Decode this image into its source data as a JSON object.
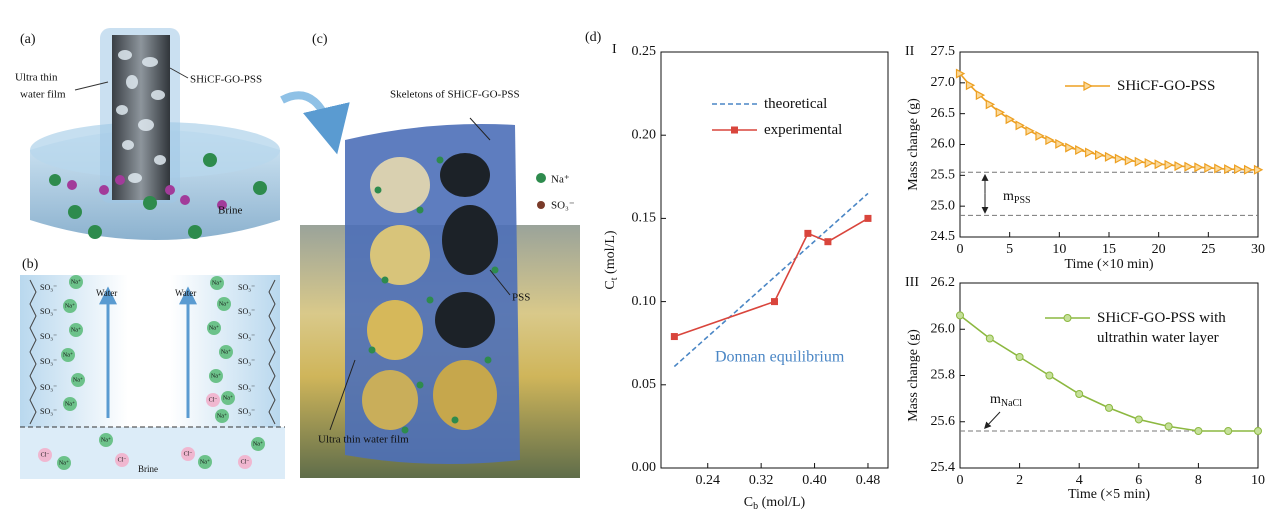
{
  "panel_labels": {
    "a": "(a)",
    "b": "(b)",
    "c": "(c)",
    "d": "(d)"
  },
  "panel_a": {
    "film_label": [
      "Ultra thin",
      "water film"
    ],
    "material_label": "SHiCF-GO-PSS",
    "brine_label": "Brine"
  },
  "panel_b": {
    "water_label": "Water",
    "brine_label": "Brine",
    "ions": {
      "sulfonate": "SO₃⁻",
      "sodium": "Na⁺",
      "chloride": "Cl⁻"
    }
  },
  "panel_c": {
    "skeleton_label": "Skeletons of SHiCF-GO-PSS",
    "legend": {
      "sodium": "Na⁺",
      "sulfonate": "SO₃⁻"
    },
    "pss_label": "PSS",
    "film_label": "Ultra thin water film"
  },
  "chart_data": [
    {
      "type": "line",
      "panel": "I",
      "x_label": [
        "C",
        "b",
        " (mol/L)"
      ],
      "y_label": [
        "C",
        "t",
        " (mol/L)"
      ],
      "xlim": [
        0.17,
        0.51
      ],
      "xticks": [
        0.24,
        0.32,
        {
          "value": 0.4,
          "label": "0.40"
        },
        0.48
      ],
      "ylim": [
        0,
        0.25
      ],
      "yticks": [
        {
          "value": 0,
          "label": "0.00"
        },
        0.05,
        {
          "value": 0.1,
          "label": "0.10"
        },
        0.15,
        {
          "value": 0.2,
          "label": "0.20"
        },
        0.25
      ],
      "series": [
        {
          "name": "theoretical",
          "color": "#4a86c5",
          "dash": true,
          "marker": "none",
          "x": [
            0.19,
            0.48
          ],
          "values": [
            0.061,
            0.165
          ]
        },
        {
          "name": "experimental",
          "color": "#d9453c",
          "dash": false,
          "marker": "square",
          "x": [
            0.19,
            0.34,
            0.39,
            0.42,
            0.48
          ],
          "values": [
            0.079,
            0.1,
            0.141,
            0.136,
            0.15
          ]
        }
      ],
      "annotation": "Donnan equilibrium"
    },
    {
      "type": "line",
      "panel": "II",
      "x_label": [
        "Time (×10 min)"
      ],
      "y_label": [
        "Mass change (g)"
      ],
      "x": [
        0,
        1,
        2,
        3,
        4,
        5,
        6,
        7,
        8,
        9,
        10,
        11,
        12,
        13,
        14,
        15,
        16,
        17,
        18,
        19,
        20,
        21,
        22,
        23,
        24,
        25,
        26,
        27,
        28,
        29,
        30
      ],
      "xlim": [
        0,
        30
      ],
      "xticks": [
        0,
        5,
        10,
        15,
        20,
        25,
        30
      ],
      "ylim": [
        24.5,
        27.5
      ],
      "yticks": [
        24.5,
        {
          "value": 25,
          "label": "25.0"
        },
        25.5,
        {
          "value": 26,
          "label": "26.0"
        },
        26.5,
        {
          "value": 27,
          "label": "27.0"
        },
        27.5
      ],
      "series": [
        {
          "name": "SHiCF-GO-PSS",
          "color": "#eda022",
          "dash": false,
          "marker": "triangle",
          "values": [
            27.15,
            26.96,
            26.8,
            26.65,
            26.52,
            26.41,
            26.31,
            26.22,
            26.14,
            26.07,
            26.01,
            25.95,
            25.91,
            25.87,
            25.83,
            25.8,
            25.77,
            25.74,
            25.72,
            25.7,
            25.68,
            25.67,
            25.65,
            25.64,
            25.63,
            25.62,
            25.61,
            25.6,
            25.6,
            25.59,
            25.59
          ]
        }
      ],
      "reference_lines": [
        25.55,
        24.85
      ],
      "annotation": [
        "m",
        "PSS"
      ]
    },
    {
      "type": "line",
      "panel": "III",
      "x_label": [
        "Time (×5 min)"
      ],
      "y_label": [
        "Mass change (g)"
      ],
      "x": [
        0,
        1,
        2,
        3,
        4,
        5,
        6,
        7,
        8,
        9,
        10
      ],
      "xlim": [
        0,
        10
      ],
      "xticks": [
        0,
        2,
        4,
        6,
        8,
        10
      ],
      "ylim": [
        25.4,
        26.2
      ],
      "yticks": [
        25.4,
        25.6,
        25.8,
        {
          "value": 26,
          "label": "26.0"
        },
        26.2
      ],
      "series": [
        {
          "name": "SHiCF-GO-PSS with ultrathin water layer",
          "color": "#8cb840",
          "dash": false,
          "marker": "circle",
          "values": [
            26.06,
            25.96,
            25.88,
            25.8,
            25.72,
            25.66,
            25.61,
            25.58,
            25.56,
            25.56,
            25.56
          ]
        }
      ],
      "reference_lines": [
        25.56
      ],
      "annotation": [
        "m",
        "NaCl"
      ]
    }
  ]
}
